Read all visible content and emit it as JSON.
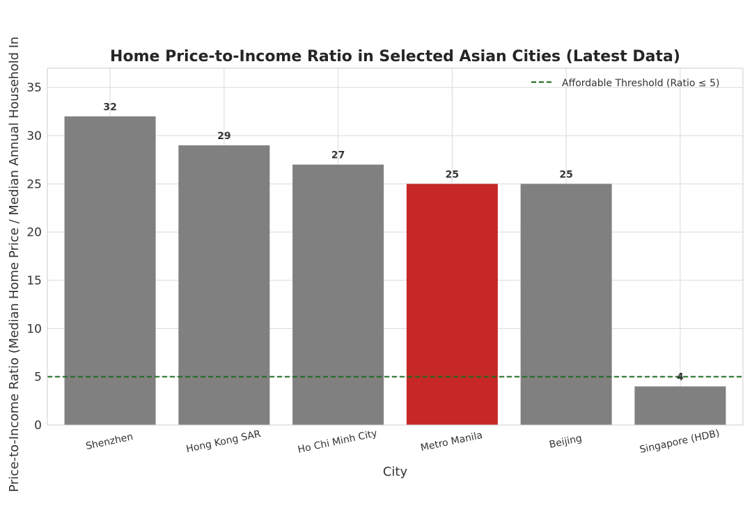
{
  "chart_data": {
    "type": "bar",
    "title": "Home Price-to-Income Ratio in Selected Asian Cities (Latest Data)",
    "xlabel": "City",
    "ylabel": "Price-to-Income Ratio (Median Home Price / Median Annual Household In",
    "categories": [
      "Shenzhen",
      "Hong Kong SAR",
      "Ho Chi Minh City",
      "Metro Manila",
      "Beijing",
      "Singapore (HDB)"
    ],
    "values": [
      32,
      29,
      27,
      25,
      25,
      4
    ],
    "data_labels": [
      "32",
      "29",
      "27",
      "25",
      "25",
      "4"
    ],
    "bar_colors": [
      "#808080",
      "#808080",
      "#808080",
      "#c62828",
      "#808080",
      "#808080"
    ],
    "ylim": [
      0,
      37
    ],
    "yticks": [
      0,
      5,
      10,
      15,
      20,
      25,
      30,
      35
    ],
    "grid": true,
    "threshold": {
      "value": 5,
      "label": "Affordable Threshold (Ratio ≤ 5)",
      "color": "#1b6b1b",
      "style": "dashed"
    },
    "legend_position": "top-right"
  }
}
